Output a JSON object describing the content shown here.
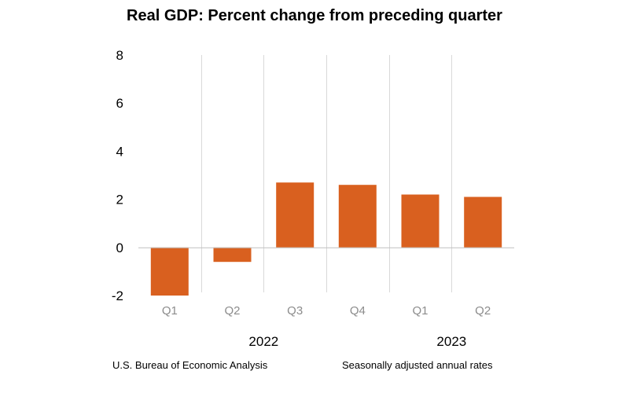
{
  "chart_data": {
    "type": "bar",
    "title": "Real GDP:  Percent change from preceding quarter",
    "categories": [
      "Q1",
      "Q2",
      "Q3",
      "Q4",
      "Q1",
      "Q2"
    ],
    "groups": [
      {
        "label": "2022",
        "categories": [
          "Q1",
          "Q2",
          "Q3",
          "Q4"
        ]
      },
      {
        "label": "2023",
        "categories": [
          "Q1",
          "Q2"
        ]
      }
    ],
    "values": [
      -2.0,
      -0.6,
      2.7,
      2.6,
      2.2,
      2.1
    ],
    "ylim": [
      -2,
      8
    ],
    "yticks": [
      "-2",
      "0",
      "2",
      "4",
      "6",
      "8"
    ],
    "xlabel": "",
    "ylabel": "",
    "bar_color": "#d9601f",
    "grid": "vertical separators"
  },
  "footer": {
    "source": "U.S. Bureau of Economic Analysis",
    "note": "Seasonally adjusted annual rates"
  }
}
